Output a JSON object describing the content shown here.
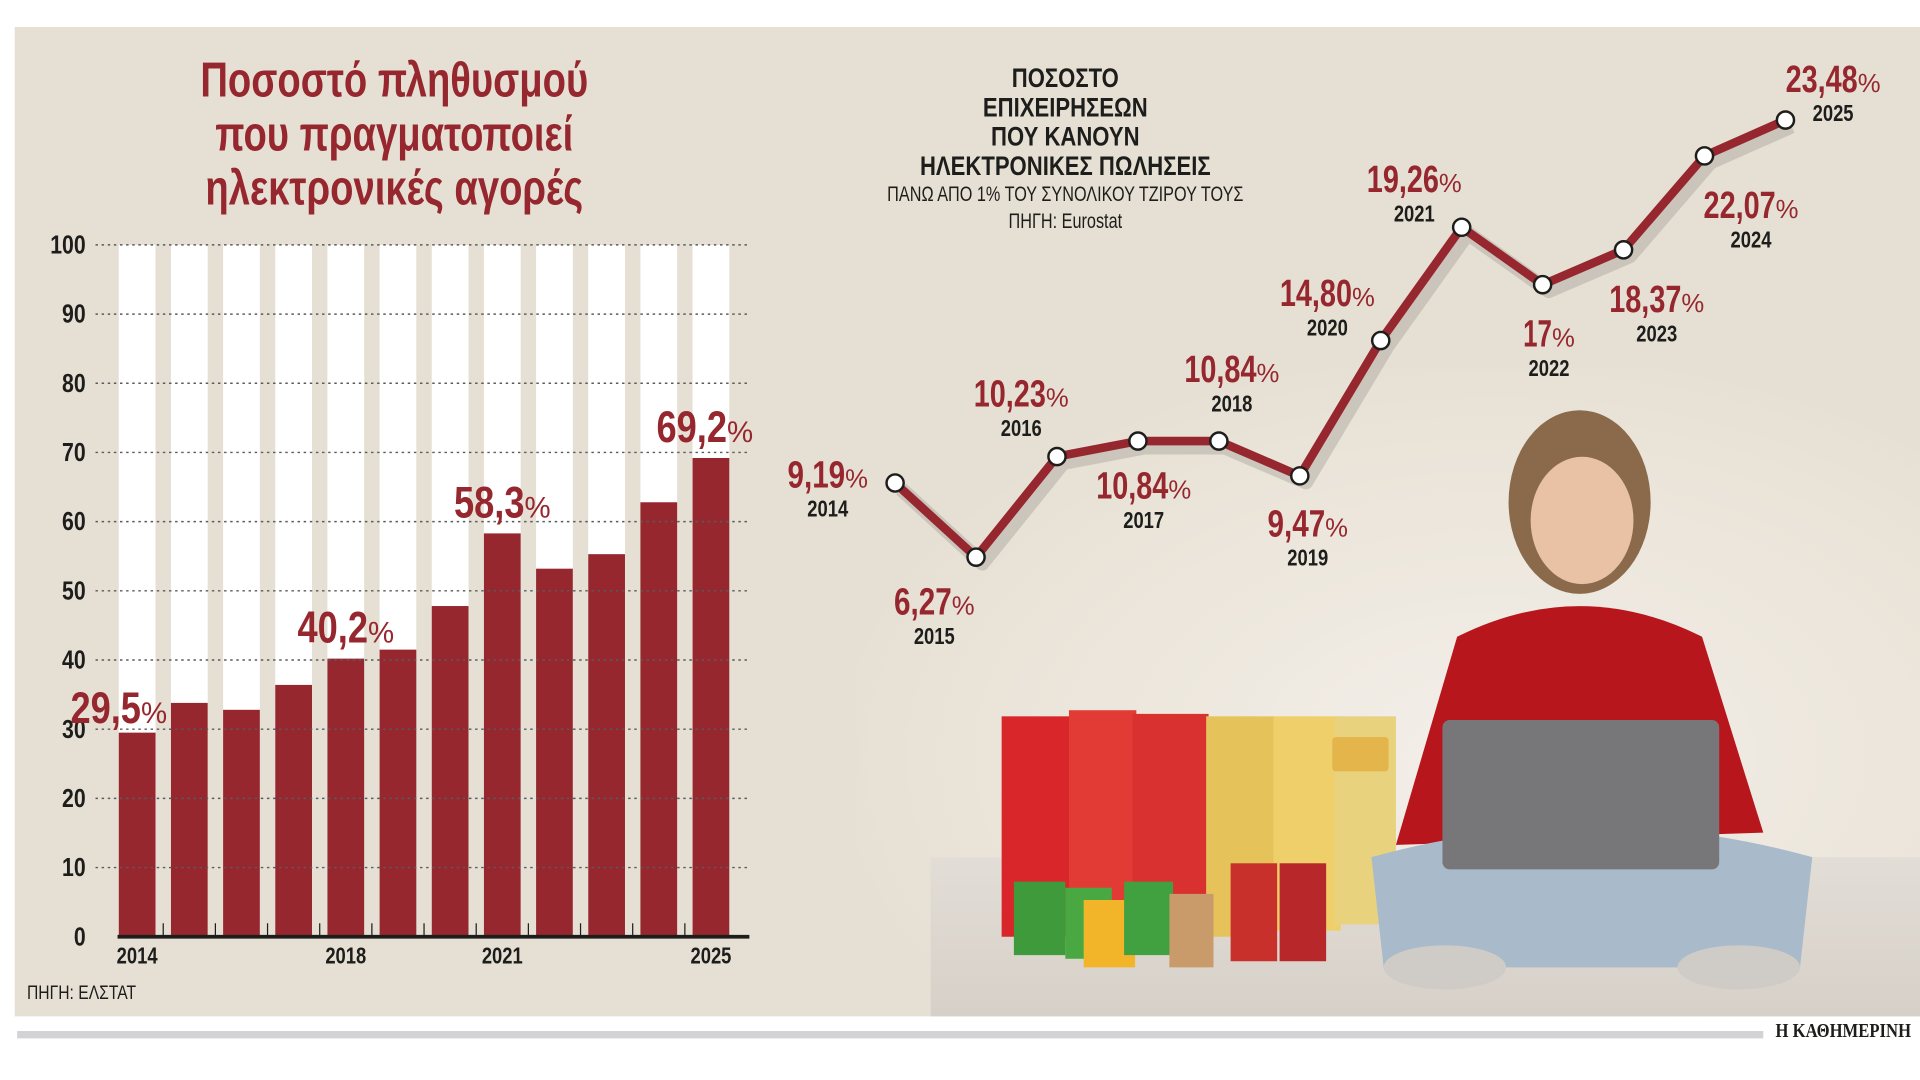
{
  "colors": {
    "accent": "#96272f",
    "panel": "#e6e0d4",
    "text": "#1d1d1b"
  },
  "left_title_lines": [
    "Ποσοστό πληθυσμού",
    "που πραγματοποιεί",
    "ηλεκτρονικές αγορές"
  ],
  "left_source": "ΠΗΓΗ: ΕΛΣΤΑΤ",
  "right_title_lines": [
    "ΠΟΣΟΣΤΟ",
    "ΕΠΙΧΕΙΡΗΣΕΩΝ",
    "ΠΟΥ ΚΑΝΟΥΝ",
    "ΗΛΕΚΤΡΟΝΙΚΕΣ ΠΩΛΗΣΕΙΣ"
  ],
  "right_subtitle": "ΠΑΝΩ ΑΠΟ 1% ΤΟΥ ΣΥΝΟΛΙΚΟΥ ΤΖΙΡΟΥ ΤΟΥΣ",
  "right_source": "ΠΗΓΗ: Eurostat",
  "brand": "Η ΚΑΘΗΜΕΡΙΝΗ",
  "chart_data": [
    {
      "type": "bar",
      "title": "Ποσοστό πληθυσμού που πραγματοποιεί ηλεκτρονικές αγορές",
      "categories": [
        "2014",
        "2015",
        "2016",
        "2017",
        "2018",
        "2019",
        "2020",
        "2021",
        "2022",
        "2023",
        "2024",
        "2025"
      ],
      "values": [
        29.5,
        33.8,
        32.8,
        36.4,
        40.2,
        41.5,
        47.8,
        58.3,
        53.2,
        55.3,
        62.8,
        69.2
      ],
      "ylim": [
        0,
        100
      ],
      "yticks": [
        "0",
        "10",
        "20",
        "30",
        "40",
        "50",
        "60",
        "70",
        "80",
        "90",
        "100"
      ],
      "xtick_labels": [
        {
          "index": 0,
          "label": "2014"
        },
        {
          "index": 4,
          "label": "2018"
        },
        {
          "index": 7,
          "label": "2021"
        },
        {
          "index": 11,
          "label": "2025"
        }
      ],
      "data_labels": [
        {
          "index": 0,
          "num": "29,5",
          "pct": "%"
        },
        {
          "index": 4,
          "num": "40,2",
          "pct": "%"
        },
        {
          "index": 7,
          "num": "58,3",
          "pct": "%"
        },
        {
          "index": 11,
          "num": "69,2",
          "pct": "%"
        }
      ],
      "grid": true
    },
    {
      "type": "line",
      "title": "ΠΟΣΟΣΤΟ ΕΠΙΧΕΙΡΗΣΕΩΝ ΠΟΥ ΚΑΝΟΥΝ ΗΛΕΚΤΡΟΝΙΚΕΣ ΠΩΛΗΣΕΙΣ",
      "x": [
        "2014",
        "2015",
        "2016",
        "2017",
        "2018",
        "2019",
        "2020",
        "2021",
        "2022",
        "2023",
        "2024",
        "2025"
      ],
      "values": [
        9.19,
        6.27,
        10.23,
        10.84,
        10.84,
        9.47,
        14.8,
        19.26,
        17,
        18.37,
        22.07,
        23.48
      ],
      "labels": [
        "9,19",
        "6,27",
        "10,23",
        "10,84",
        "10,84",
        "9,47",
        "14,80",
        "19,26",
        "17",
        "18,37",
        "22,07",
        "23,48"
      ],
      "pct": "%"
    }
  ]
}
